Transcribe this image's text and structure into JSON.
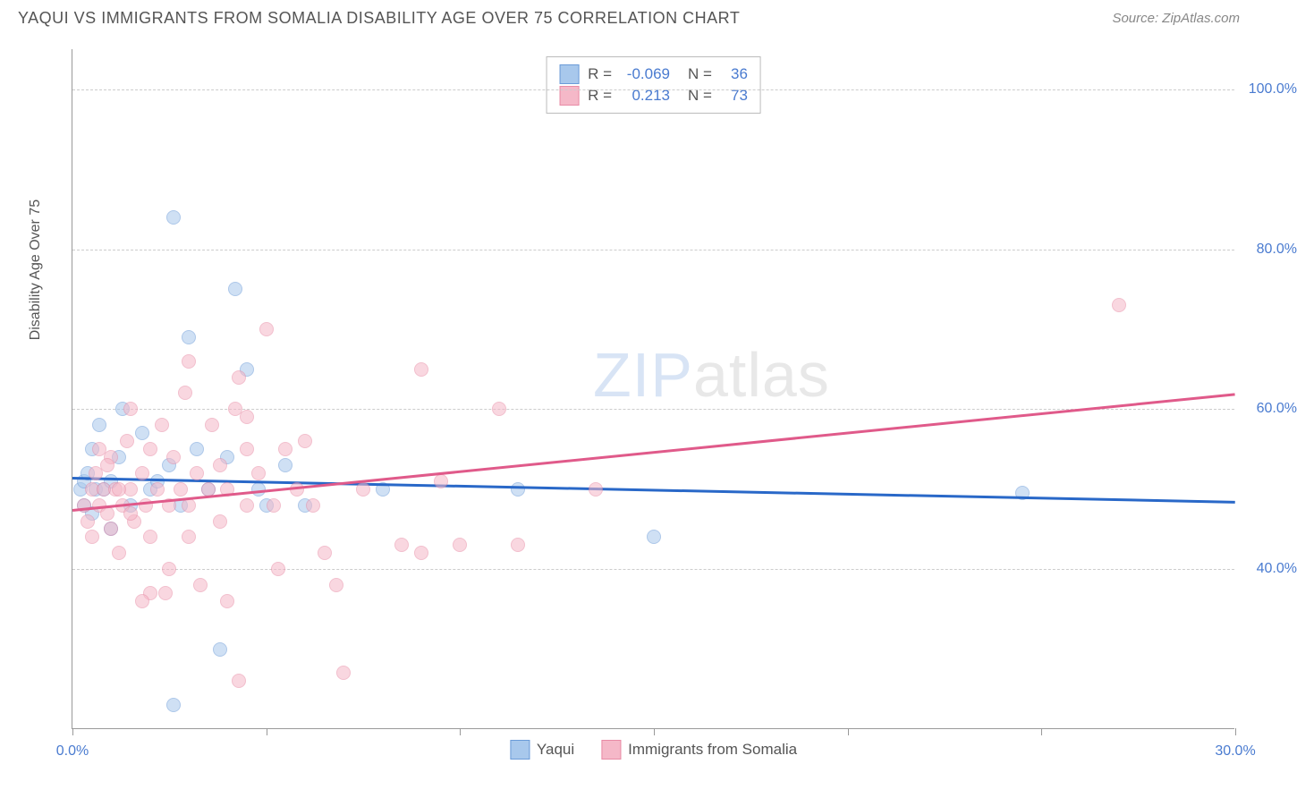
{
  "title": "YAQUI VS IMMIGRANTS FROM SOMALIA DISABILITY AGE OVER 75 CORRELATION CHART",
  "source": "Source: ZipAtlas.com",
  "ylabel": "Disability Age Over 75",
  "watermark": {
    "part1": "ZIP",
    "part2": "atlas"
  },
  "chart": {
    "type": "scatter",
    "xlim": [
      0,
      30
    ],
    "ylim": [
      20,
      105
    ],
    "xticks": [
      0,
      5,
      10,
      15,
      20,
      25,
      30
    ],
    "xtick_labels": {
      "0": "0.0%",
      "30": "30.0%"
    },
    "yticks": [
      40,
      60,
      80,
      100
    ],
    "ytick_labels": [
      "40.0%",
      "60.0%",
      "80.0%",
      "100.0%"
    ],
    "grid_color": "#cccccc",
    "axis_color": "#999999",
    "background_color": "#ffffff",
    "tick_label_color": "#4a7bd0",
    "marker_radius": 8,
    "marker_opacity": 0.55,
    "trend_width": 3
  },
  "series": [
    {
      "name": "Yaqui",
      "label": "Yaqui",
      "fill_color": "#a8c8ec",
      "stroke_color": "#6b9bd8",
      "trend_color": "#2968c8",
      "R": "-0.069",
      "N": "36",
      "trend": {
        "x1": 0,
        "y1": 51.5,
        "x2": 30,
        "y2": 48.5
      },
      "points": [
        [
          0.2,
          50
        ],
        [
          0.3,
          48
        ],
        [
          0.3,
          51
        ],
        [
          0.4,
          52
        ],
        [
          0.5,
          47
        ],
        [
          0.5,
          55
        ],
        [
          0.6,
          50
        ],
        [
          0.7,
          58
        ],
        [
          0.8,
          50
        ],
        [
          1.0,
          51
        ],
        [
          1.0,
          45
        ],
        [
          1.2,
          54
        ],
        [
          1.3,
          60
        ],
        [
          1.5,
          48
        ],
        [
          1.8,
          57
        ],
        [
          2.0,
          50
        ],
        [
          2.2,
          51
        ],
        [
          2.5,
          53
        ],
        [
          2.6,
          84
        ],
        [
          2.8,
          48
        ],
        [
          3.0,
          69
        ],
        [
          3.2,
          55
        ],
        [
          3.5,
          50
        ],
        [
          3.8,
          30
        ],
        [
          4.0,
          54
        ],
        [
          4.2,
          75
        ],
        [
          4.5,
          65
        ],
        [
          4.8,
          50
        ],
        [
          5.0,
          48
        ],
        [
          5.5,
          53
        ],
        [
          2.6,
          23
        ],
        [
          6.0,
          48
        ],
        [
          8.0,
          50
        ],
        [
          11.5,
          50
        ],
        [
          15.0,
          44
        ],
        [
          24.5,
          49.5
        ]
      ]
    },
    {
      "name": "Immigrants from Somalia",
      "label": "Immigrants from Somalia",
      "fill_color": "#f5b8c8",
      "stroke_color": "#e88ba5",
      "trend_color": "#e05a8a",
      "R": "0.213",
      "N": "73",
      "trend": {
        "x1": 0,
        "y1": 47.5,
        "x2": 30,
        "y2": 62
      },
      "points": [
        [
          0.3,
          48
        ],
        [
          0.4,
          46
        ],
        [
          0.5,
          50
        ],
        [
          0.5,
          44
        ],
        [
          0.6,
          52
        ],
        [
          0.7,
          48
        ],
        [
          0.7,
          55
        ],
        [
          0.8,
          50
        ],
        [
          0.9,
          47
        ],
        [
          1.0,
          54
        ],
        [
          1.0,
          45
        ],
        [
          1.1,
          50
        ],
        [
          1.2,
          42
        ],
        [
          1.3,
          48
        ],
        [
          1.4,
          56
        ],
        [
          1.5,
          50
        ],
        [
          1.5,
          60
        ],
        [
          1.6,
          46
        ],
        [
          1.8,
          52
        ],
        [
          1.9,
          48
        ],
        [
          2.0,
          44
        ],
        [
          2.0,
          55
        ],
        [
          2.2,
          50
        ],
        [
          2.3,
          58
        ],
        [
          2.4,
          37
        ],
        [
          2.5,
          48
        ],
        [
          2.6,
          54
        ],
        [
          2.8,
          50
        ],
        [
          2.9,
          62
        ],
        [
          3.0,
          48
        ],
        [
          3.0,
          66
        ],
        [
          3.2,
          52
        ],
        [
          3.3,
          38
        ],
        [
          3.5,
          50
        ],
        [
          3.6,
          58
        ],
        [
          3.8,
          46
        ],
        [
          4.0,
          50
        ],
        [
          4.0,
          36
        ],
        [
          4.2,
          60
        ],
        [
          4.3,
          64
        ],
        [
          4.5,
          48
        ],
        [
          4.5,
          55
        ],
        [
          4.8,
          52
        ],
        [
          5.0,
          70
        ],
        [
          5.2,
          48
        ],
        [
          5.3,
          40
        ],
        [
          5.5,
          55
        ],
        [
          5.8,
          50
        ],
        [
          6.0,
          56
        ],
        [
          6.2,
          48
        ],
        [
          6.5,
          42
        ],
        [
          4.3,
          26
        ],
        [
          6.8,
          38
        ],
        [
          7.0,
          27
        ],
        [
          7.5,
          50
        ],
        [
          8.5,
          43
        ],
        [
          9.0,
          65
        ],
        [
          9.0,
          42
        ],
        [
          9.5,
          51
        ],
        [
          10.0,
          43
        ],
        [
          11.0,
          60
        ],
        [
          11.5,
          43
        ],
        [
          13.5,
          50
        ],
        [
          27.0,
          73
        ],
        [
          2.0,
          37
        ],
        [
          2.5,
          40
        ],
        [
          3.0,
          44
        ],
        [
          1.8,
          36
        ],
        [
          1.2,
          50
        ],
        [
          0.9,
          53
        ],
        [
          1.5,
          47
        ],
        [
          3.8,
          53
        ],
        [
          4.5,
          59
        ]
      ]
    }
  ],
  "legend": {
    "stats_format": {
      "R_label": "R =",
      "N_label": "N ="
    }
  }
}
